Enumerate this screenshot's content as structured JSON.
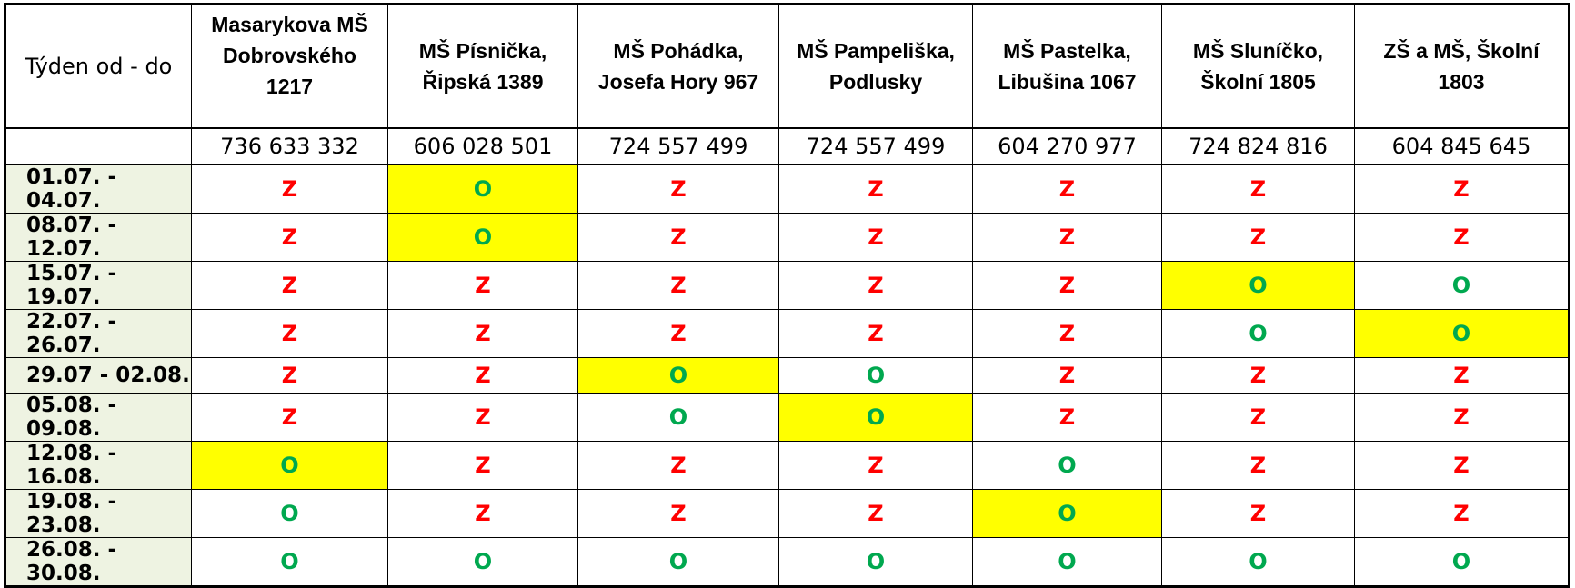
{
  "corner_label": "Týden od - do",
  "schools": [
    "Masarykova MŠ Dobrovského 1217",
    "MŠ Písnička, Řipská 1389",
    "MŠ Pohádka, Josefa Hory 967",
    "MŠ Pampeliška, Podlusky",
    "MŠ Pastelka, Libušina 1067",
    "MŠ Sluníčko, Školní 1805",
    "ZŠ a MŠ, Školní 1803"
  ],
  "phones": [
    "736 633 332",
    "606 028 501",
    "724 557 499",
    "724 557 499",
    "604 270 977",
    "724 824 816",
    "604 845 645"
  ],
  "colors": {
    "closed": "#ff0000",
    "open": "#00a84f",
    "highlight": "#ffff00",
    "week_bg": "#eef3e2"
  },
  "weeks": [
    {
      "label": "01.07. - 04.07.",
      "status": [
        "Z",
        "O",
        "Z",
        "Z",
        "Z",
        "Z",
        "Z"
      ],
      "highlight": [
        false,
        true,
        false,
        false,
        false,
        false,
        false
      ]
    },
    {
      "label": "08.07. - 12.07.",
      "status": [
        "Z",
        "O",
        "Z",
        "Z",
        "Z",
        "Z",
        "Z"
      ],
      "highlight": [
        false,
        true,
        false,
        false,
        false,
        false,
        false
      ]
    },
    {
      "label": "15.07. - 19.07.",
      "status": [
        "Z",
        "Z",
        "Z",
        "Z",
        "Z",
        "O",
        "O"
      ],
      "highlight": [
        false,
        false,
        false,
        false,
        false,
        true,
        false
      ]
    },
    {
      "label": "22.07. - 26.07.",
      "status": [
        "Z",
        "Z",
        "Z",
        "Z",
        "Z",
        "O",
        "O"
      ],
      "highlight": [
        false,
        false,
        false,
        false,
        false,
        false,
        true
      ]
    },
    {
      "label": "29.07 - 02.08.",
      "status": [
        "Z",
        "Z",
        "O",
        "O",
        "Z",
        "Z",
        "Z"
      ],
      "highlight": [
        false,
        false,
        true,
        false,
        false,
        false,
        false
      ]
    },
    {
      "label": "05.08. - 09.08.",
      "status": [
        "Z",
        "Z",
        "O",
        "O",
        "Z",
        "Z",
        "Z"
      ],
      "highlight": [
        false,
        false,
        false,
        true,
        false,
        false,
        false
      ]
    },
    {
      "label": "12.08. - 16.08.",
      "status": [
        "O",
        "Z",
        "Z",
        "Z",
        "O",
        "Z",
        "Z"
      ],
      "highlight": [
        true,
        false,
        false,
        false,
        false,
        false,
        false
      ]
    },
    {
      "label": "19.08. - 23.08.",
      "status": [
        "O",
        "Z",
        "Z",
        "Z",
        "O",
        "Z",
        "Z"
      ],
      "highlight": [
        false,
        false,
        false,
        false,
        true,
        false,
        false
      ]
    },
    {
      "label": "26.08. - 30.08.",
      "status": [
        "O",
        "O",
        "O",
        "O",
        "O",
        "O",
        "O"
      ],
      "highlight": [
        false,
        false,
        false,
        false,
        false,
        false,
        false
      ]
    }
  ]
}
